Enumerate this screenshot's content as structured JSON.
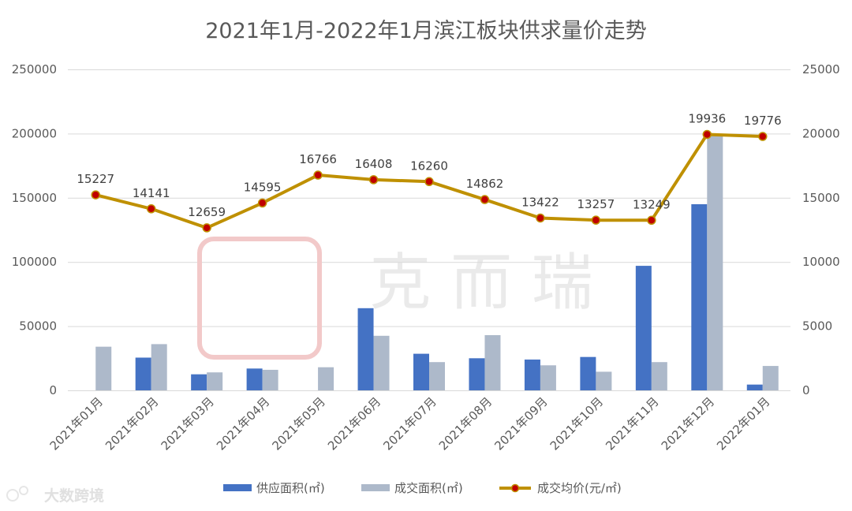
{
  "chart_data": {
    "type": "bar+line",
    "title": "2021年1月-2022年1月滨江板块供求量价走势",
    "categories": [
      "2021年01月",
      "2021年02月",
      "2021年03月",
      "2021年04月",
      "2021年05月",
      "2021年06月",
      "2021年07月",
      "2021年08月",
      "2021年09月",
      "2021年10月",
      "2021年11月",
      "2021年12月",
      "2022年01月"
    ],
    "left_axis": {
      "ylim": [
        0,
        250000
      ],
      "ticks": [
        "0",
        "50000",
        "100000",
        "150000",
        "200000",
        "250000"
      ]
    },
    "right_axis": {
      "ylim": [
        0,
        25000
      ],
      "ticks": [
        "0",
        "5000",
        "10000",
        "15000",
        "20000",
        "25000"
      ]
    },
    "grid": true,
    "legend_position": "bottom",
    "series": [
      {
        "name": "供应面积(㎡)",
        "type": "bar",
        "axis": "left",
        "color": "#4472c4",
        "values": [
          0,
          25500,
          12500,
          17000,
          0,
          64000,
          28500,
          25000,
          24000,
          26000,
          97000,
          145000,
          4500
        ]
      },
      {
        "name": "成交面积(㎡)",
        "type": "bar",
        "axis": "left",
        "color": "#adb9ca",
        "values": [
          34000,
          36000,
          14000,
          16000,
          18000,
          42500,
          22000,
          43000,
          19500,
          14500,
          22000,
          199000,
          19000
        ]
      },
      {
        "name": "成交均价(元/㎡)",
        "type": "line",
        "axis": "right",
        "color": "#bf9000",
        "marker_color": "#c00000",
        "values": [
          15227,
          14141,
          12659,
          14595,
          16766,
          16408,
          16260,
          14862,
          13422,
          13257,
          13249,
          19936,
          19776
        ],
        "data_labels": [
          "15227",
          "14141",
          "12659",
          "14595",
          "16766",
          "16408",
          "16260",
          "14862",
          "13422",
          "13257",
          "13249",
          "19936",
          "19776"
        ]
      }
    ]
  },
  "watermark": {
    "text": "克 而 瑞",
    "color": "#d9d9d9"
  },
  "brand": {
    "text": "大数跨境",
    "icon": "brand-logo-icon"
  }
}
